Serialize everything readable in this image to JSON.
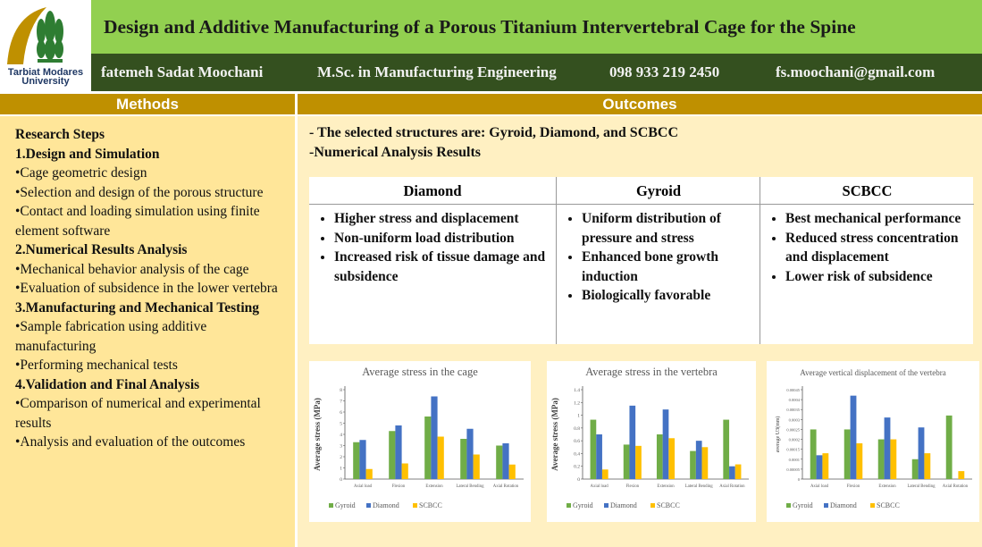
{
  "header": {
    "logo_lines": [
      "Tarbiat Modares",
      "University"
    ],
    "title": "Design and Additive Manufacturing of a Porous Titanium Intervertebral Cage for the Spine",
    "author": "fatemeh Sadat Moochani",
    "degree": "M.Sc. in Manufacturing Engineering",
    "phone": "098 933 219 2450",
    "email": "fs.moochani@gmail.com"
  },
  "methods": {
    "heading": "Methods",
    "items": [
      {
        "text": "Research Steps",
        "style": "bold"
      },
      {
        "text": "1.Design and Simulation",
        "style": "bold"
      },
      {
        "text": "•Cage geometric design",
        "style": "plain"
      },
      {
        "text": "•Selection and design of the porous structure",
        "style": "plain"
      },
      {
        "text": "•Contact and loading simulation using finite element software",
        "style": "plain"
      },
      {
        "text": "2.Numerical Results Analysis",
        "style": "bold"
      },
      {
        "text": "•Mechanical behavior analysis of the cage",
        "style": "plain"
      },
      {
        "text": "•Evaluation of subsidence in the lower vertebra",
        "style": "plain"
      },
      {
        "text": "3.Manufacturing and Mechanical Testing",
        "style": "bold"
      },
      {
        "text": "•Sample fabrication using additive manufacturing",
        "style": "plain"
      },
      {
        "text": "•Performing mechanical tests",
        "style": "plain"
      },
      {
        "text": "4.Validation and Final Analysis",
        "style": "bold"
      },
      {
        "text": "•Comparison of numerical and experimental results",
        "style": "plain"
      },
      {
        "text": "•Analysis and evaluation of the outcomes",
        "style": "plain"
      }
    ]
  },
  "outcomes": {
    "heading": "Outcomes",
    "intro": [
      "- The selected structures are: Gyroid, Diamond, and SCBCC",
      "-Numerical Analysis Results"
    ],
    "table": {
      "headers": [
        "Diamond",
        "Gyroid",
        "SCBCC"
      ],
      "columns": [
        [
          "Higher stress and displacement",
          "Non-uniform load distribution",
          "Increased risk of tissue damage and subsidence"
        ],
        [
          "Uniform distribution of pressure and stress",
          "Enhanced bone growth induction",
          "Biologically favorable"
        ],
        [
          "Best mechanical performance",
          "Reduced stress concentration and displacement",
          "Lower risk of subsidence"
        ]
      ]
    }
  },
  "chart_data": [
    {
      "type": "bar",
      "title": "Average stress in the cage",
      "y_label": "Average stress (MPa)",
      "categories": [
        "Axial load",
        "Flexion",
        "Extension",
        "Lateral Bending",
        "Axial Rotation"
      ],
      "series": [
        {
          "name": "Gyroid",
          "color": "#70ad47",
          "values": [
            3.3,
            4.3,
            5.6,
            3.6,
            3.0
          ]
        },
        {
          "name": "Diamond",
          "color": "#4472c4",
          "values": [
            3.5,
            4.8,
            7.4,
            4.5,
            3.2
          ]
        },
        {
          "name": "SCBCC",
          "color": "#ffc000",
          "values": [
            0.9,
            1.4,
            3.8,
            2.2,
            1.3
          ]
        }
      ],
      "ylim": [
        0,
        8
      ],
      "yticks": [
        0,
        1,
        2,
        3,
        4,
        5,
        6,
        7,
        8
      ]
    },
    {
      "type": "bar",
      "title": "Average stress in the vertebra",
      "y_label": "Average stress (MPa)",
      "categories": [
        "Axial load",
        "Flexion",
        "Extension",
        "Lateral Bending",
        "Axial Rotation"
      ],
      "series": [
        {
          "name": "Gyroid",
          "color": "#70ad47",
          "values": [
            0.93,
            0.54,
            0.7,
            0.44,
            0.93
          ]
        },
        {
          "name": "Diamond",
          "color": "#4472c4",
          "values": [
            0.7,
            1.15,
            1.09,
            0.6,
            0.2
          ]
        },
        {
          "name": "SCBCC",
          "color": "#ffc000",
          "values": [
            0.15,
            0.52,
            0.64,
            0.5,
            0.23
          ]
        }
      ],
      "ylim": [
        0,
        1.4
      ],
      "yticks": [
        0,
        0.2,
        0.4,
        0.6,
        0.8,
        1,
        1.2,
        1.4
      ]
    },
    {
      "type": "bar",
      "title": "Average vertical displacement of the vertebra",
      "y_label": "average U3(mm)",
      "categories": [
        "Axial load",
        "Flexion",
        "Extension",
        "Lateral Bending",
        "Axial Rotation"
      ],
      "series": [
        {
          "name": "Gyroid",
          "color": "#70ad47",
          "values": [
            0.00025,
            0.00025,
            0.0002,
            0.0001,
            0.00032
          ]
        },
        {
          "name": "Diamond",
          "color": "#4472c4",
          "values": [
            0.00012,
            0.00042,
            0.00031,
            0.00026,
            0
          ]
        },
        {
          "name": "SCBCC",
          "color": "#ffc000",
          "values": [
            0.00013,
            0.00018,
            0.0002,
            0.00013,
            4e-05
          ]
        }
      ],
      "ylim": [
        0,
        0.00045
      ],
      "yticks": [
        0,
        5e-05,
        0.0001,
        0.00015,
        0.0002,
        0.00025,
        0.0003,
        0.00035,
        0.0004,
        0.00045
      ]
    }
  ]
}
